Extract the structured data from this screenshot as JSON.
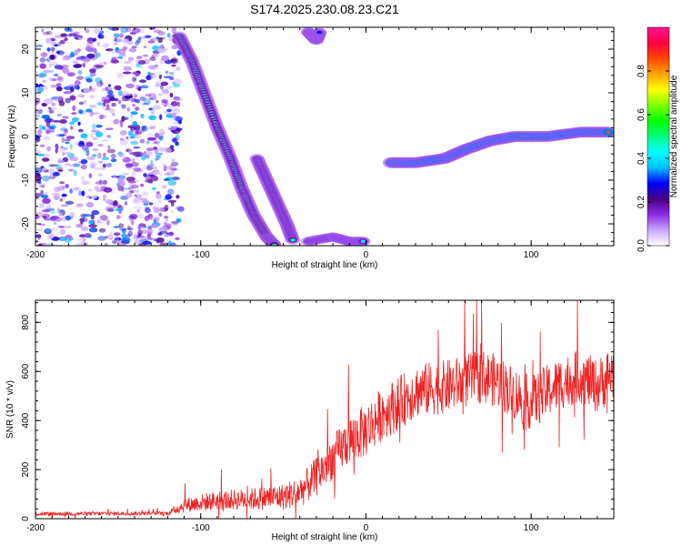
{
  "title": "S174.2025.230.08.23.C21",
  "chart_data": [
    {
      "type": "heatmap",
      "xlabel": "Height of straight line (km)",
      "ylabel": "Frequency (Hz)",
      "xlim": [
        -200,
        150
      ],
      "ylim": [
        -25,
        25
      ],
      "xticks": [
        -200,
        -100,
        0,
        100
      ],
      "yticks": [
        -20,
        -10,
        0,
        10,
        20
      ],
      "colorbar": {
        "label": "Normalized spectral amplitude",
        "range": [
          0,
          1
        ],
        "ticks": [
          "0.0",
          "0.2",
          "0.4",
          "0.6",
          "0.8"
        ],
        "colors": [
          "#ffffff",
          "#c9a6ff",
          "#8a2be2",
          "#4b0082",
          "#0000ff",
          "#00bfff",
          "#00ffff",
          "#00ff7f",
          "#00ff00",
          "#7fff00",
          "#ffff00",
          "#ffa500",
          "#ff4500",
          "#ff0040",
          "#ff1493"
        ]
      },
      "features": [
        {
          "name": "upper-diagonal-track",
          "points": [
            [
              -113,
              23
            ],
            [
              -105,
              17
            ],
            [
              -98,
              10
            ],
            [
              -90,
              2
            ],
            [
              -82,
              -5
            ],
            [
              -75,
              -12
            ],
            [
              -68,
              -18
            ],
            [
              -60,
              -23
            ],
            [
              -55,
              -25
            ]
          ],
          "peak": 0.55
        },
        {
          "name": "lower-diagonal-track",
          "points": [
            [
              -66,
              -5
            ],
            [
              -60,
              -10
            ],
            [
              -54,
              -15
            ],
            [
              -48,
              -20
            ],
            [
              -44,
              -24
            ]
          ],
          "peak": 0.5
        },
        {
          "name": "bottom-horizontal-track",
          "points": [
            [
              -35,
              -24
            ],
            [
              -20,
              -23
            ],
            [
              -10,
              -24
            ],
            [
              -1,
              -24
            ]
          ],
          "peak": 0.45
        },
        {
          "name": "top-short-track",
          "points": [
            [
              -35,
              24
            ],
            [
              -30,
              22
            ],
            [
              -28,
              24
            ]
          ],
          "peak": 0.35
        },
        {
          "name": "right-rising-track",
          "points": [
            [
              15,
              -6
            ],
            [
              30,
              -6
            ],
            [
              48,
              -5
            ],
            [
              60,
              -3
            ],
            [
              75,
              -1
            ],
            [
              90,
              0
            ],
            [
              110,
              0
            ],
            [
              130,
              1
            ],
            [
              148,
              1
            ]
          ],
          "peak": 0.95
        }
      ]
    },
    {
      "type": "line",
      "xlabel": "Height of straight line (km)",
      "ylabel": "SNR (10 * v/v)",
      "xlim": [
        -200,
        150
      ],
      "ylim": [
        0,
        890
      ],
      "xticks": [
        -200,
        -100,
        0,
        100
      ],
      "yticks": [
        0,
        200,
        400,
        600,
        800
      ],
      "color": "#ee2222",
      "envelope_x": [
        -200,
        -120,
        -110,
        -90,
        -70,
        -50,
        -40,
        -30,
        -20,
        -10,
        0,
        10,
        20,
        30,
        40,
        50,
        60,
        70,
        80,
        90,
        100,
        110,
        120,
        130,
        140,
        150
      ],
      "envelope_mean": [
        20,
        22,
        55,
        75,
        80,
        90,
        110,
        170,
        250,
        320,
        360,
        430,
        470,
        520,
        530,
        540,
        560,
        580,
        560,
        510,
        470,
        520,
        560,
        580,
        540,
        600
      ],
      "spread": [
        8,
        8,
        30,
        40,
        45,
        55,
        65,
        80,
        90,
        100,
        110,
        110,
        110,
        110,
        110,
        110,
        110,
        110,
        110,
        110,
        110,
        110,
        110,
        110,
        110,
        120
      ]
    }
  ]
}
